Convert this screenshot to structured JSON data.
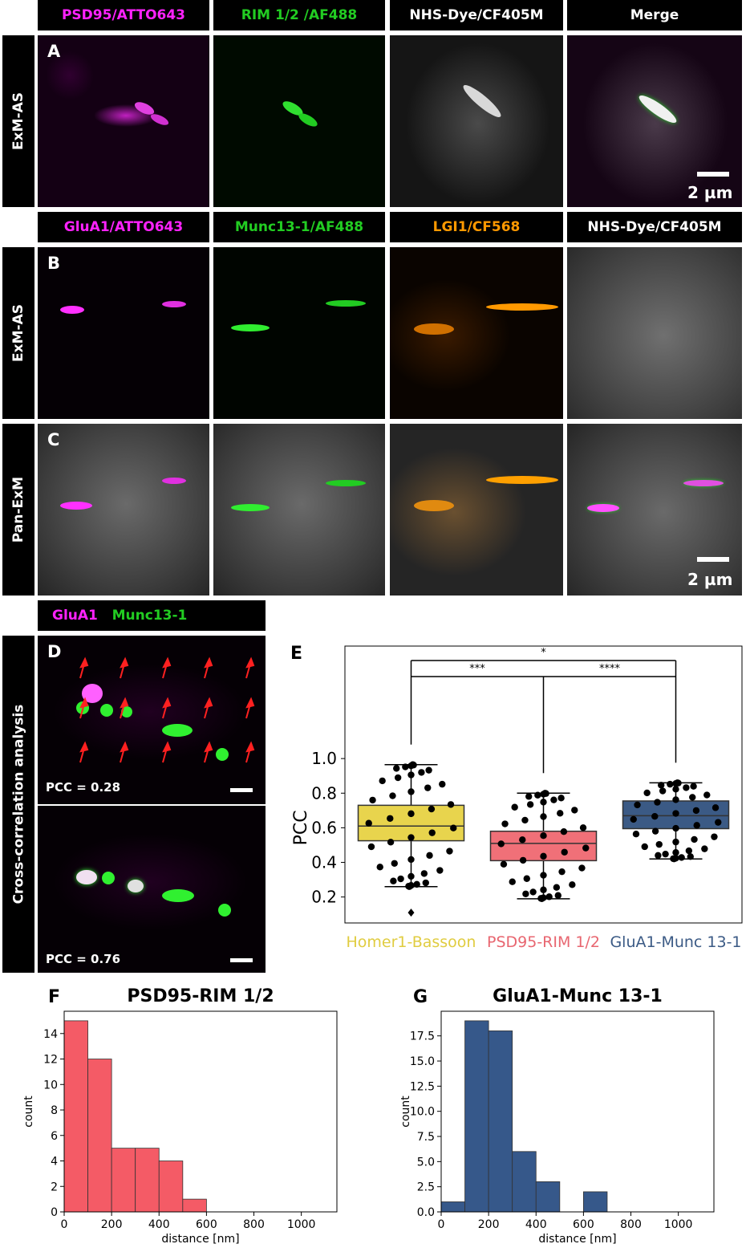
{
  "panelA": {
    "headers": [
      "PSD95/ATTO643",
      "RIM 1/2 /AF488",
      "NHS-Dye/CF405M",
      "Merge"
    ],
    "header_colors": [
      "#ff22ff",
      "#22cc22",
      "#ffffff",
      "#ffffff"
    ],
    "side_label": "ExM-AS",
    "letter": "A",
    "scale": "2 µm"
  },
  "panelBC": {
    "headers": [
      "GluA1/ATTO643",
      "Munc13-1/AF488",
      "LGI1/CF568",
      "NHS-Dye/CF405M"
    ],
    "header_colors": [
      "#ff22ff",
      "#22cc22",
      "#ff9900",
      "#ffffff"
    ],
    "side_label_B": "ExM-AS",
    "side_label_C": "Pan-ExM",
    "letter_B": "B",
    "letter_C": "C",
    "scale": "2 µm"
  },
  "panelD": {
    "header_a": "GluA1",
    "header_b": "Munc13-1",
    "side_label": "Cross-correlation analysis",
    "letter": "D",
    "pcc_top": "PCC = 0.28",
    "pcc_bottom": "PCC = 0.76"
  },
  "letters": {
    "E": "E",
    "F": "F",
    "G": "G"
  },
  "chart_data": [
    {
      "type": "box",
      "panel": "E",
      "ylabel": "PCC",
      "ylim": [
        0.05,
        1.65
      ],
      "yticks": [
        0.2,
        0.4,
        0.6,
        0.8,
        1.0
      ],
      "grid": false,
      "categories": [
        "Homer1-Bassoon",
        "PSD95-RIM 1/2",
        "GluA1-Munc 13-1"
      ],
      "category_colors": [
        "#e8d44d",
        "#f07078",
        "#3b5a85"
      ],
      "label_colors": [
        "#e0cc40",
        "#e86670",
        "#3b5a85"
      ],
      "boxes": [
        {
          "whisker_low": 0.26,
          "q1": 0.525,
          "median": 0.61,
          "q3": 0.73,
          "whisker_high": 0.965,
          "outliers": [
            0.11
          ]
        },
        {
          "whisker_low": 0.19,
          "q1": 0.41,
          "median": 0.51,
          "q3": 0.58,
          "whisker_high": 0.8,
          "outliers": []
        },
        {
          "whisker_low": 0.42,
          "q1": 0.595,
          "median": 0.67,
          "q3": 0.755,
          "whisker_high": 0.86,
          "outliers": []
        }
      ],
      "significance": [
        {
          "pair": [
            0,
            1
          ],
          "label": "***"
        },
        {
          "pair": [
            1,
            2
          ],
          "label": "****"
        },
        {
          "pair": [
            0,
            2
          ],
          "label": "*"
        }
      ]
    },
    {
      "type": "bar",
      "panel": "F",
      "title": "PSD95-RIM 1/2",
      "xlabel": "distance [nm]",
      "ylabel": "count",
      "bin_width": 100,
      "bins_start": [
        0,
        100,
        200,
        300,
        400,
        500
      ],
      "values": [
        15,
        12,
        5,
        5,
        4,
        1
      ],
      "xlim": [
        0,
        1150
      ],
      "ylim": [
        0,
        15.75
      ],
      "xticks": [
        0,
        200,
        400,
        600,
        800,
        1000
      ],
      "yticks": [
        0,
        2,
        4,
        6,
        8,
        10,
        12,
        14
      ],
      "ytick_labels": [
        "0",
        "2",
        "4",
        "6",
        "8",
        "10",
        "12",
        "14"
      ],
      "color": "#f45b66"
    },
    {
      "type": "bar",
      "panel": "G",
      "title": "GluA1-Munc 13-1",
      "xlabel": "distance [nm]",
      "ylabel": "count",
      "bin_width": 100,
      "bins_start": [
        0,
        100,
        200,
        300,
        400,
        500,
        600
      ],
      "values": [
        1,
        19,
        18,
        6,
        3,
        0,
        2
      ],
      "xlim": [
        0,
        1150
      ],
      "ylim": [
        0,
        19.95
      ],
      "xticks": [
        0,
        200,
        400,
        600,
        800,
        1000
      ],
      "yticks": [
        0,
        2.5,
        5,
        7.5,
        10,
        12.5,
        15,
        17.5
      ],
      "ytick_labels": [
        "0.0",
        "2.5",
        "5.0",
        "7.5",
        "10.0",
        "12.5",
        "15.0",
        "17.5"
      ],
      "color": "#36588a"
    }
  ]
}
